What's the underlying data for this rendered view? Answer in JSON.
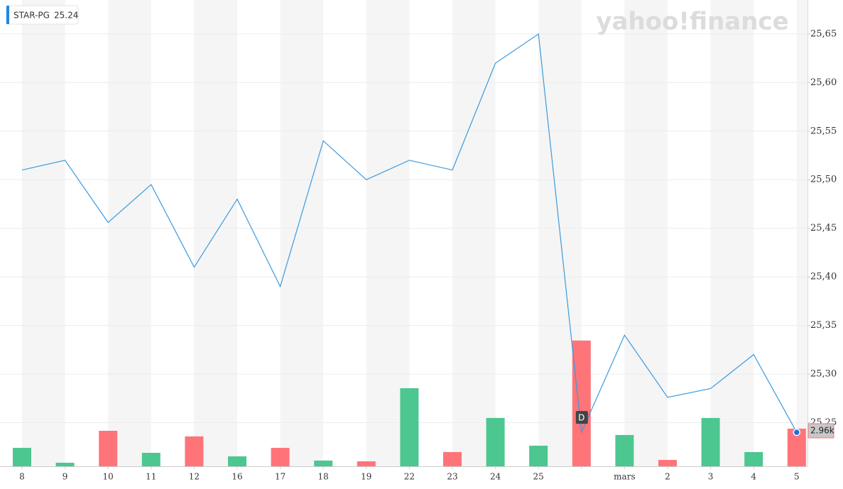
{
  "chart_data": {
    "type": "line",
    "watermark": "yahoo!finance",
    "last_price": 25.24,
    "categories": [
      "8",
      "9",
      "10",
      "11",
      "12",
      "16",
      "17",
      "18",
      "19",
      "22",
      "23",
      "24",
      "25",
      null,
      "mars",
      "2",
      "3",
      "4",
      "5"
    ],
    "series": [
      {
        "name": "STAR-PG",
        "color": "#3a9bdc",
        "values": [
          25.51,
          25.52,
          25.456,
          25.495,
          25.41,
          25.48,
          25.39,
          25.54,
          25.5,
          25.52,
          25.51,
          25.62,
          25.65,
          25.24,
          25.34,
          25.276,
          25.285,
          25.32,
          25.24
        ]
      }
    ],
    "event_labels": [
      null,
      null,
      null,
      null,
      null,
      null,
      null,
      null,
      null,
      null,
      null,
      null,
      null,
      "D",
      null,
      null,
      null,
      null,
      null
    ],
    "volume": {
      "values": [
        1450,
        280,
        2790,
        1060,
        2350,
        780,
        1450,
        450,
        390,
        6140,
        1120,
        3800,
        1620,
        9890,
        2460,
        500,
        3800,
        1120,
        2960
      ],
      "colors": [
        "#4cc790",
        "#4cc790",
        "#ff7479",
        "#4cc790",
        "#ff7479",
        "#4cc790",
        "#ff7479",
        "#4cc790",
        "#ff7479",
        "#4cc790",
        "#ff7479",
        "#4cc790",
        "#4cc790",
        "#ff7479",
        "#4cc790",
        "#ff7479",
        "#4cc790",
        "#4cc790",
        "#ff7479"
      ],
      "value_labels": [
        null,
        null,
        null,
        null,
        null,
        null,
        null,
        null,
        null,
        null,
        null,
        null,
        null,
        null,
        null,
        null,
        null,
        null,
        "2.96k"
      ],
      "ylim": [
        0,
        12000
      ]
    },
    "ylim": [
      25.205,
      25.685
    ],
    "yticks": [
      {
        "value": 25.25,
        "label": "25,25"
      },
      {
        "value": 25.3,
        "label": "25,30"
      },
      {
        "value": 25.35,
        "label": "25,35"
      },
      {
        "value": 25.4,
        "label": "25,40"
      },
      {
        "value": 25.45,
        "label": "25,45"
      },
      {
        "value": 25.5,
        "label": "25,50"
      },
      {
        "value": 25.55,
        "label": "25,55"
      },
      {
        "value": 25.6,
        "label": "25,60"
      },
      {
        "value": 25.65,
        "label": "25,65"
      }
    ],
    "grid": true
  }
}
